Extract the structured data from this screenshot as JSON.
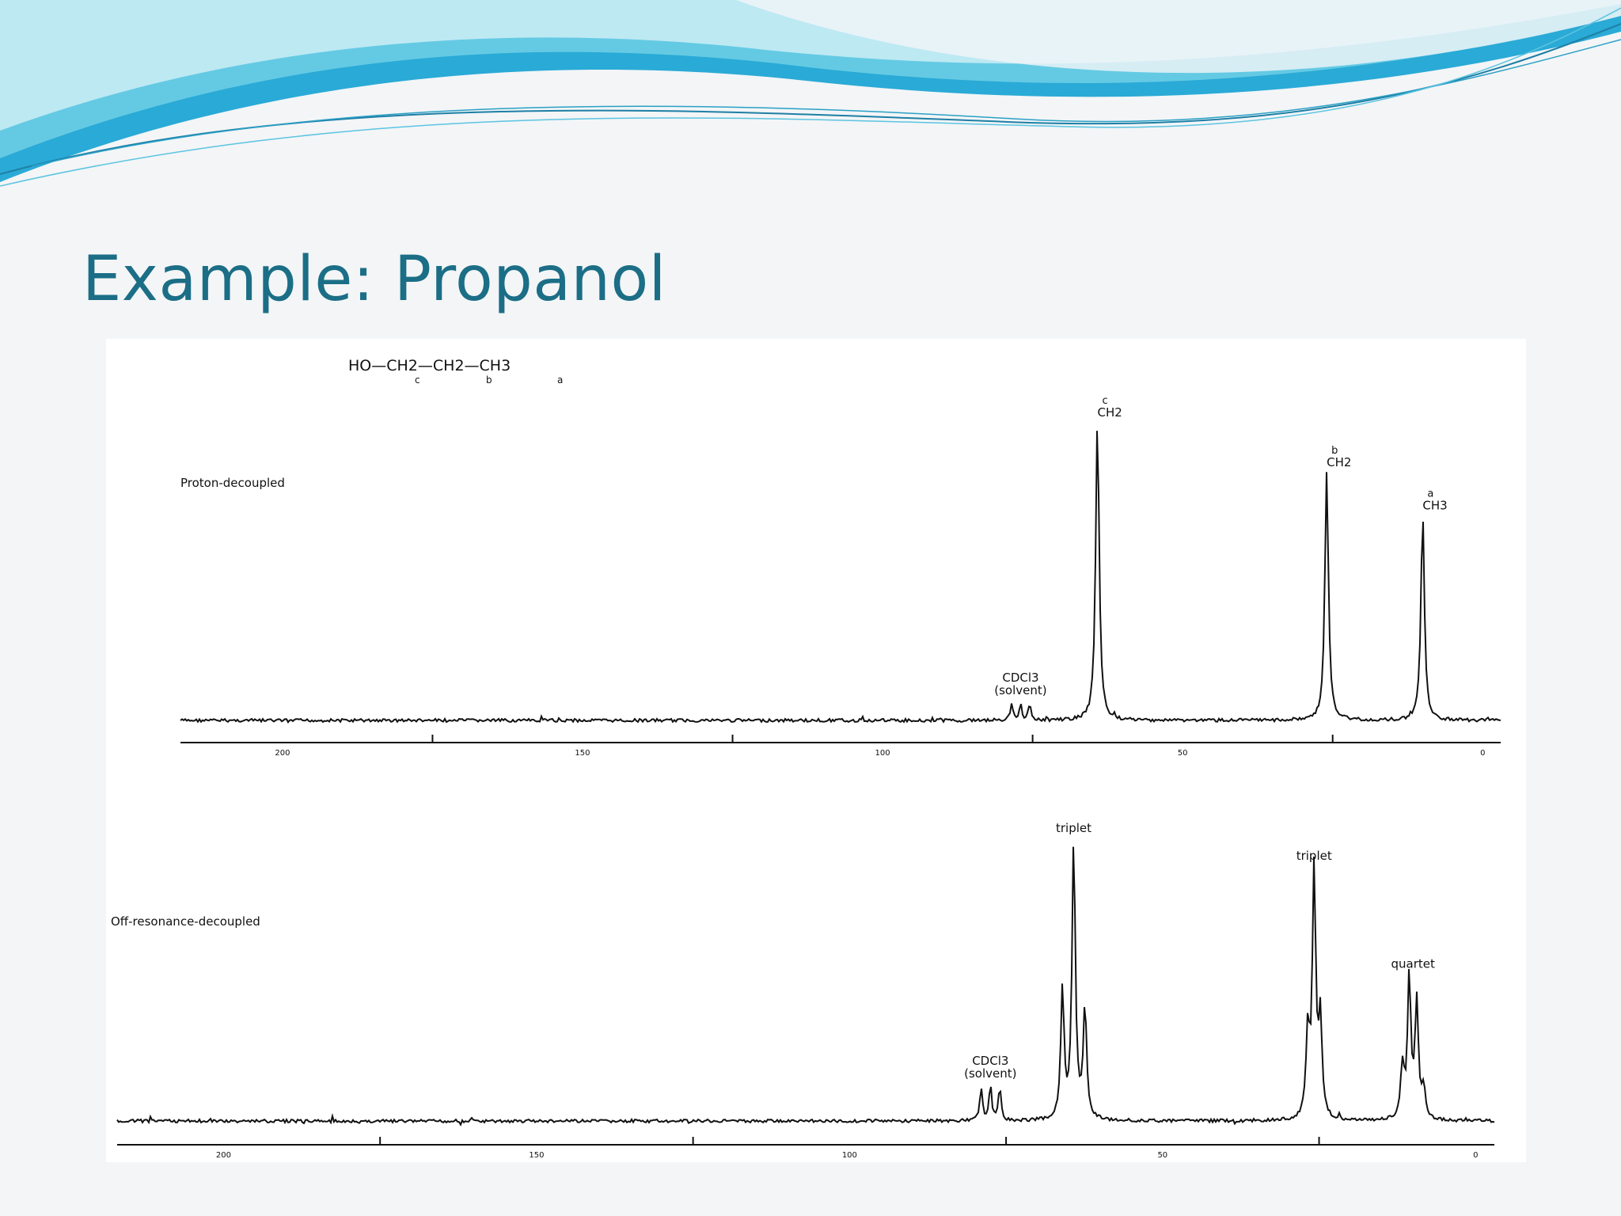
{
  "slide": {
    "title": "Example: Propanol",
    "colors": {
      "title": "#1b6e86",
      "wave_dark": "#29a9d6",
      "wave_light": "#8ee0ee",
      "background": "#f3f5f7"
    }
  },
  "molecule": {
    "formula": "HO—CH2—CH2—CH3",
    "carbon_labels": [
      "c",
      "b",
      "a"
    ]
  },
  "chart_data": [
    {
      "type": "line",
      "title": "Proton-decoupled",
      "xlabel": "",
      "ylabel": "",
      "x_axis": {
        "reversed": true,
        "range": [
          217,
          -3
        ],
        "ticks": [
          200,
          150,
          100,
          50,
          0
        ]
      },
      "ylim": [
        0,
        1.0
      ],
      "grid": false,
      "peaks": [
        {
          "ppm": 64.2,
          "height": 0.9,
          "label_top": "c",
          "label_bottom": "CH2"
        },
        {
          "ppm": 26.0,
          "height": 0.75,
          "label_top": "b",
          "label_bottom": "CH2"
        },
        {
          "ppm": 10.0,
          "height": 0.62,
          "label_top": "a",
          "label_bottom": "CH3"
        }
      ],
      "solvent": {
        "ppm": [
          78.5,
          77.0,
          75.5
        ],
        "height": 0.05,
        "label": "CDCl3",
        "sublabel": "(solvent)"
      }
    },
    {
      "type": "line",
      "title": "Off-resonance-decoupled",
      "xlabel": "",
      "ylabel": "",
      "x_axis": {
        "reversed": true,
        "range": [
          217,
          -3
        ],
        "ticks": [
          200,
          150,
          100,
          50,
          0
        ]
      },
      "ylim": [
        0,
        1.0
      ],
      "grid": false,
      "multiplets": [
        {
          "ppm": [
            66.0,
            64.2,
            62.4
          ],
          "heights": [
            0.42,
            0.9,
            0.36
          ],
          "label": "triplet"
        },
        {
          "ppm": [
            26.8,
            25.8,
            24.8
          ],
          "heights": [
            0.28,
            0.81,
            0.32
          ],
          "label": "triplet"
        },
        {
          "ppm": [
            11.7,
            10.6,
            9.4,
            8.3
          ],
          "heights": [
            0.17,
            0.46,
            0.38,
            0.1
          ],
          "label": "quartet"
        }
      ],
      "solvent": {
        "ppm": [
          79.0,
          77.5,
          76.0
        ],
        "height": 0.11,
        "label": "CDCl3",
        "sublabel": "(solvent)"
      }
    }
  ]
}
